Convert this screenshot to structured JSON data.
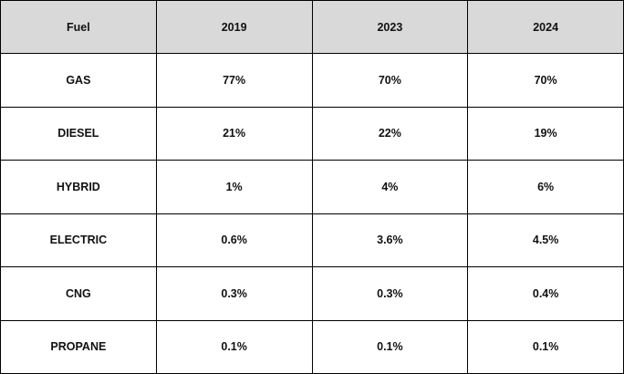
{
  "table": {
    "columns": [
      "Fuel",
      "2019",
      "2023",
      "2024"
    ],
    "rows": [
      [
        "GAS",
        "77%",
        "70%",
        "70%"
      ],
      [
        "DIESEL",
        "21%",
        "22%",
        "19%"
      ],
      [
        "HYBRID",
        "1%",
        "4%",
        "6%"
      ],
      [
        "ELECTRIC",
        "0.6%",
        "3.6%",
        "4.5%"
      ],
      [
        "CNG",
        "0.3%",
        "0.3%",
        "0.4%"
      ],
      [
        "PROPANE",
        "0.1%",
        "0.1%",
        "0.1%"
      ]
    ],
    "header_background": "#d9d9d9",
    "border_color": "#000000"
  }
}
